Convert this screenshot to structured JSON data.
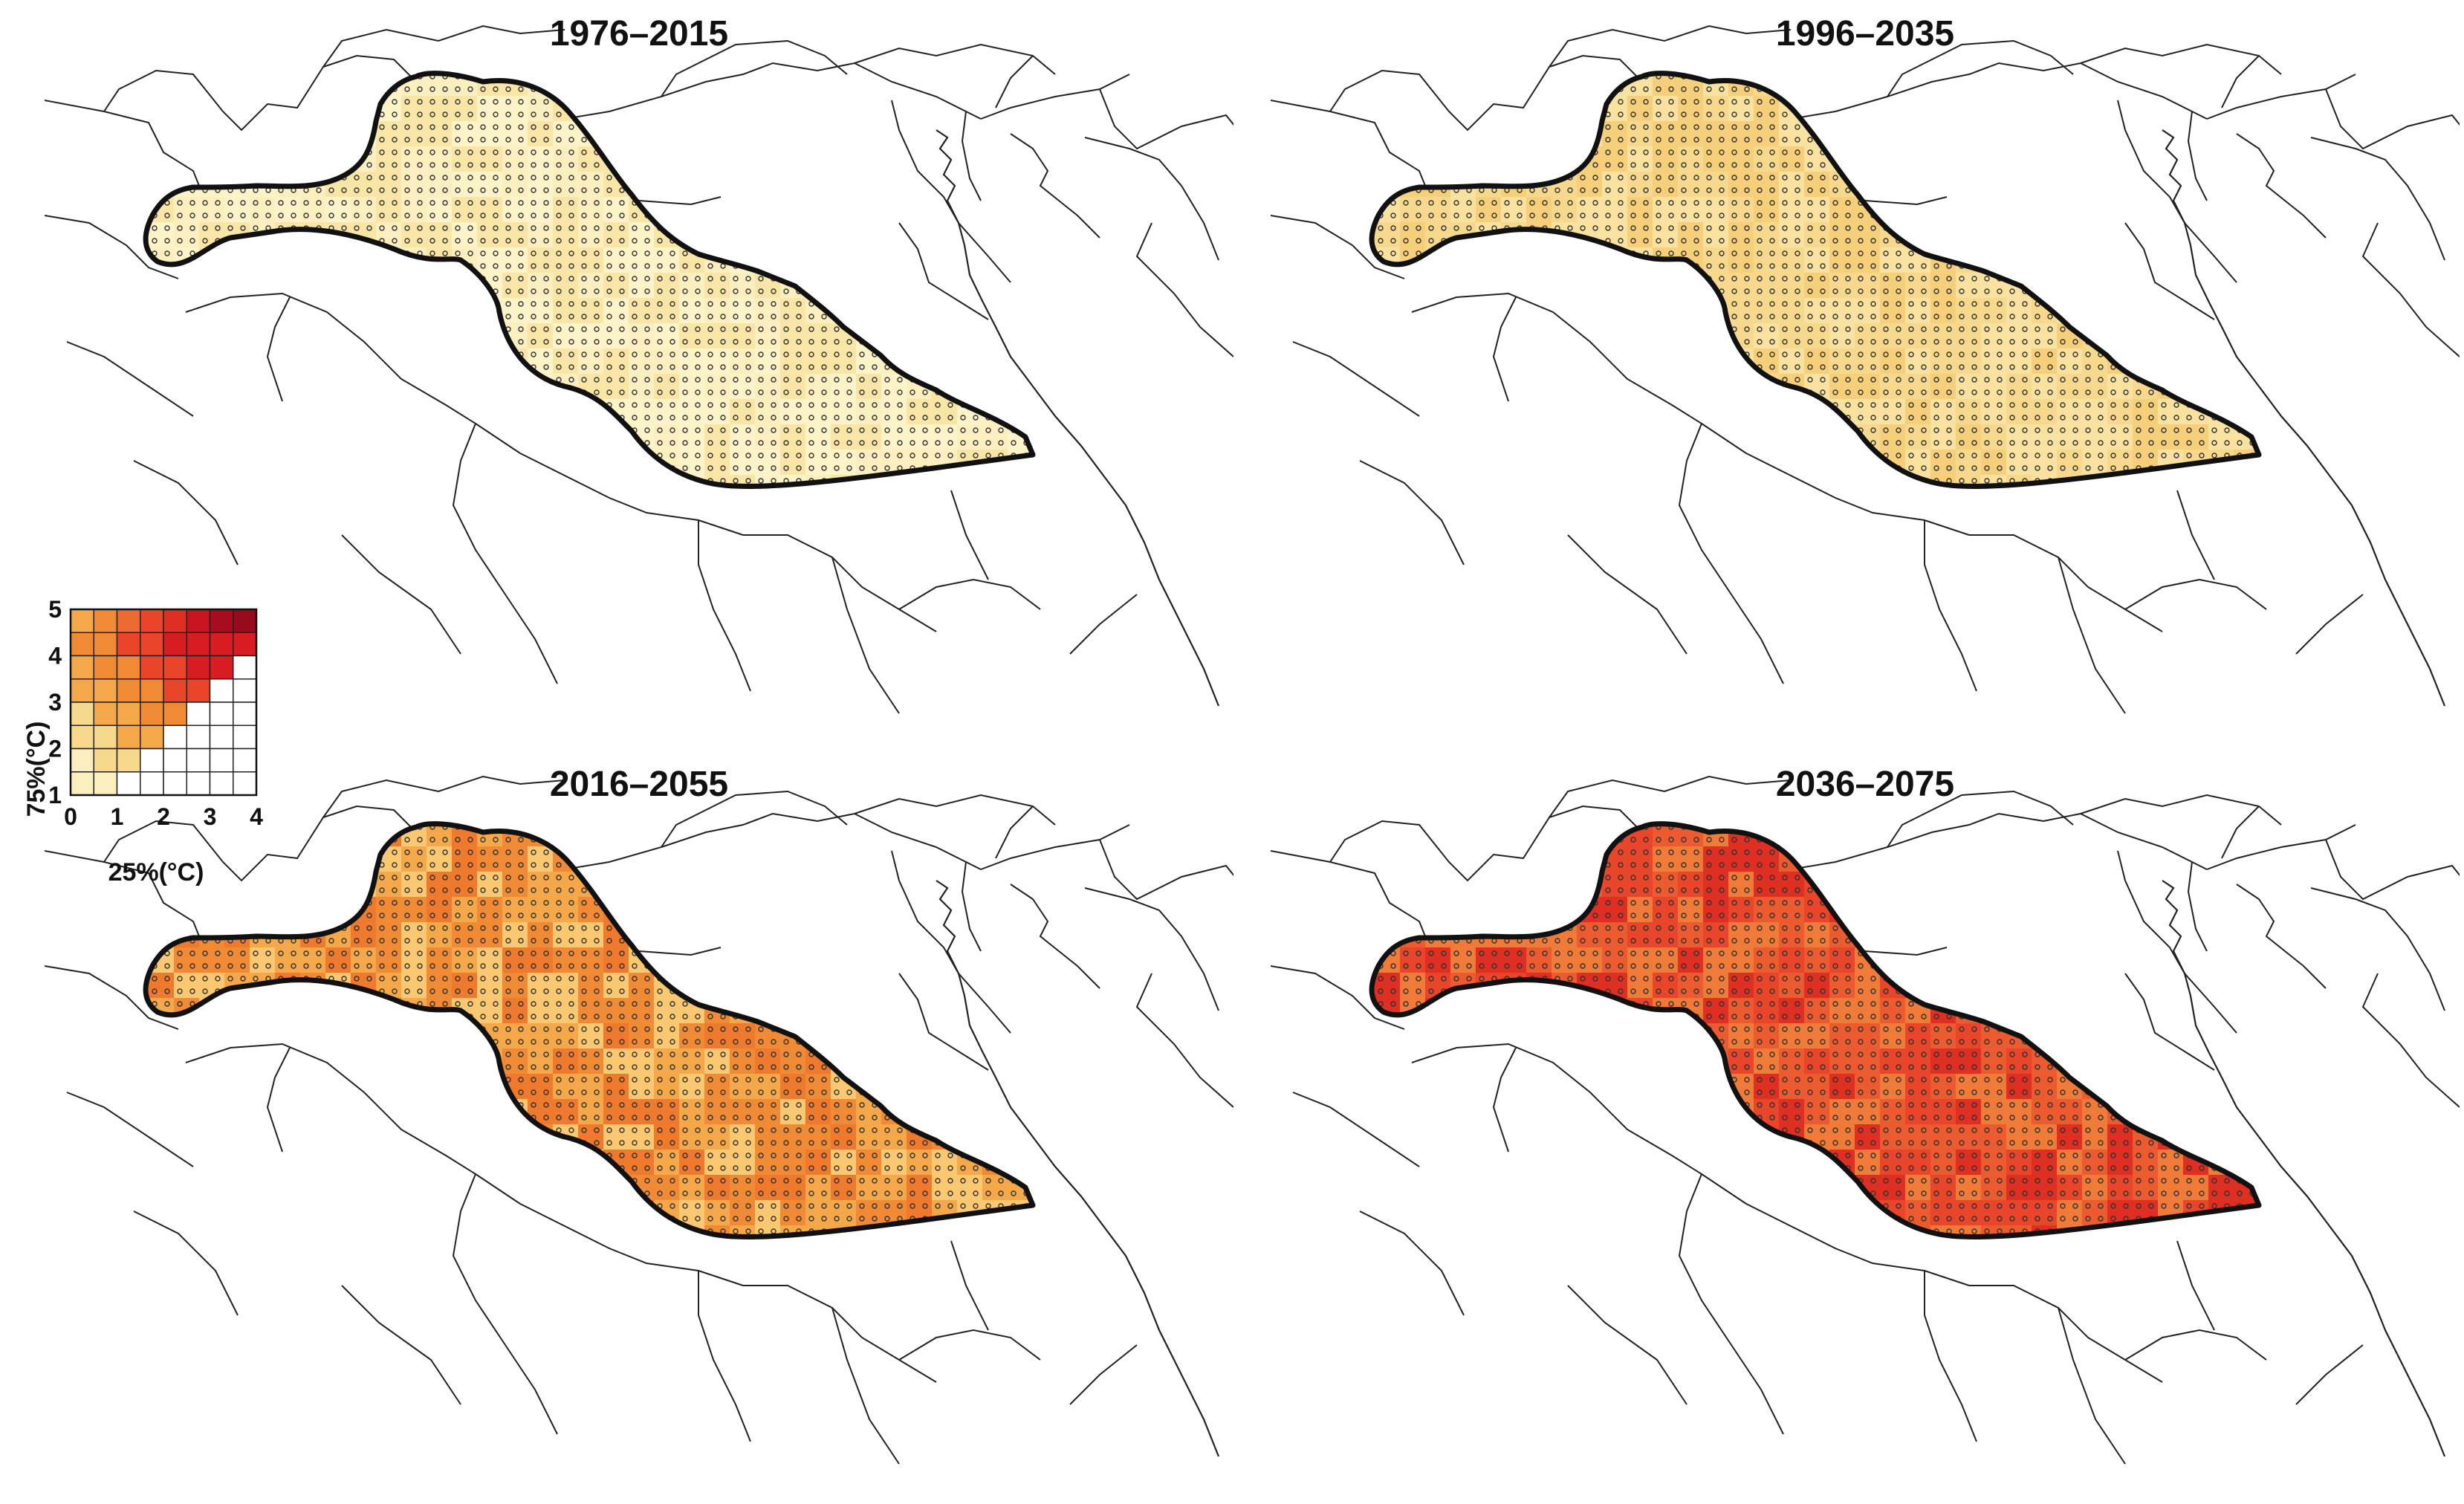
{
  "panels": [
    {
      "title": "1976–2015",
      "level": 0
    },
    {
      "title": "1996–2035",
      "level": 1
    },
    {
      "title": "2016–2055",
      "level": 2
    },
    {
      "title": "2036–2075",
      "level": 3
    }
  ],
  "legend": {
    "y_axis_label": "75%(°C)",
    "x_axis_label": "25%(°C)",
    "y_ticks": [
      "1",
      "2",
      "3",
      "4",
      "5"
    ],
    "x_ticks": [
      "0",
      "1",
      "2",
      "3",
      "4"
    ]
  },
  "colors": {
    "level_0": "#fbefc0",
    "level_1": "#f7d98d",
    "level_2": "#f4a84a",
    "level_3": "#e8452a",
    "outline": "#111111",
    "border": "#222222"
  }
}
